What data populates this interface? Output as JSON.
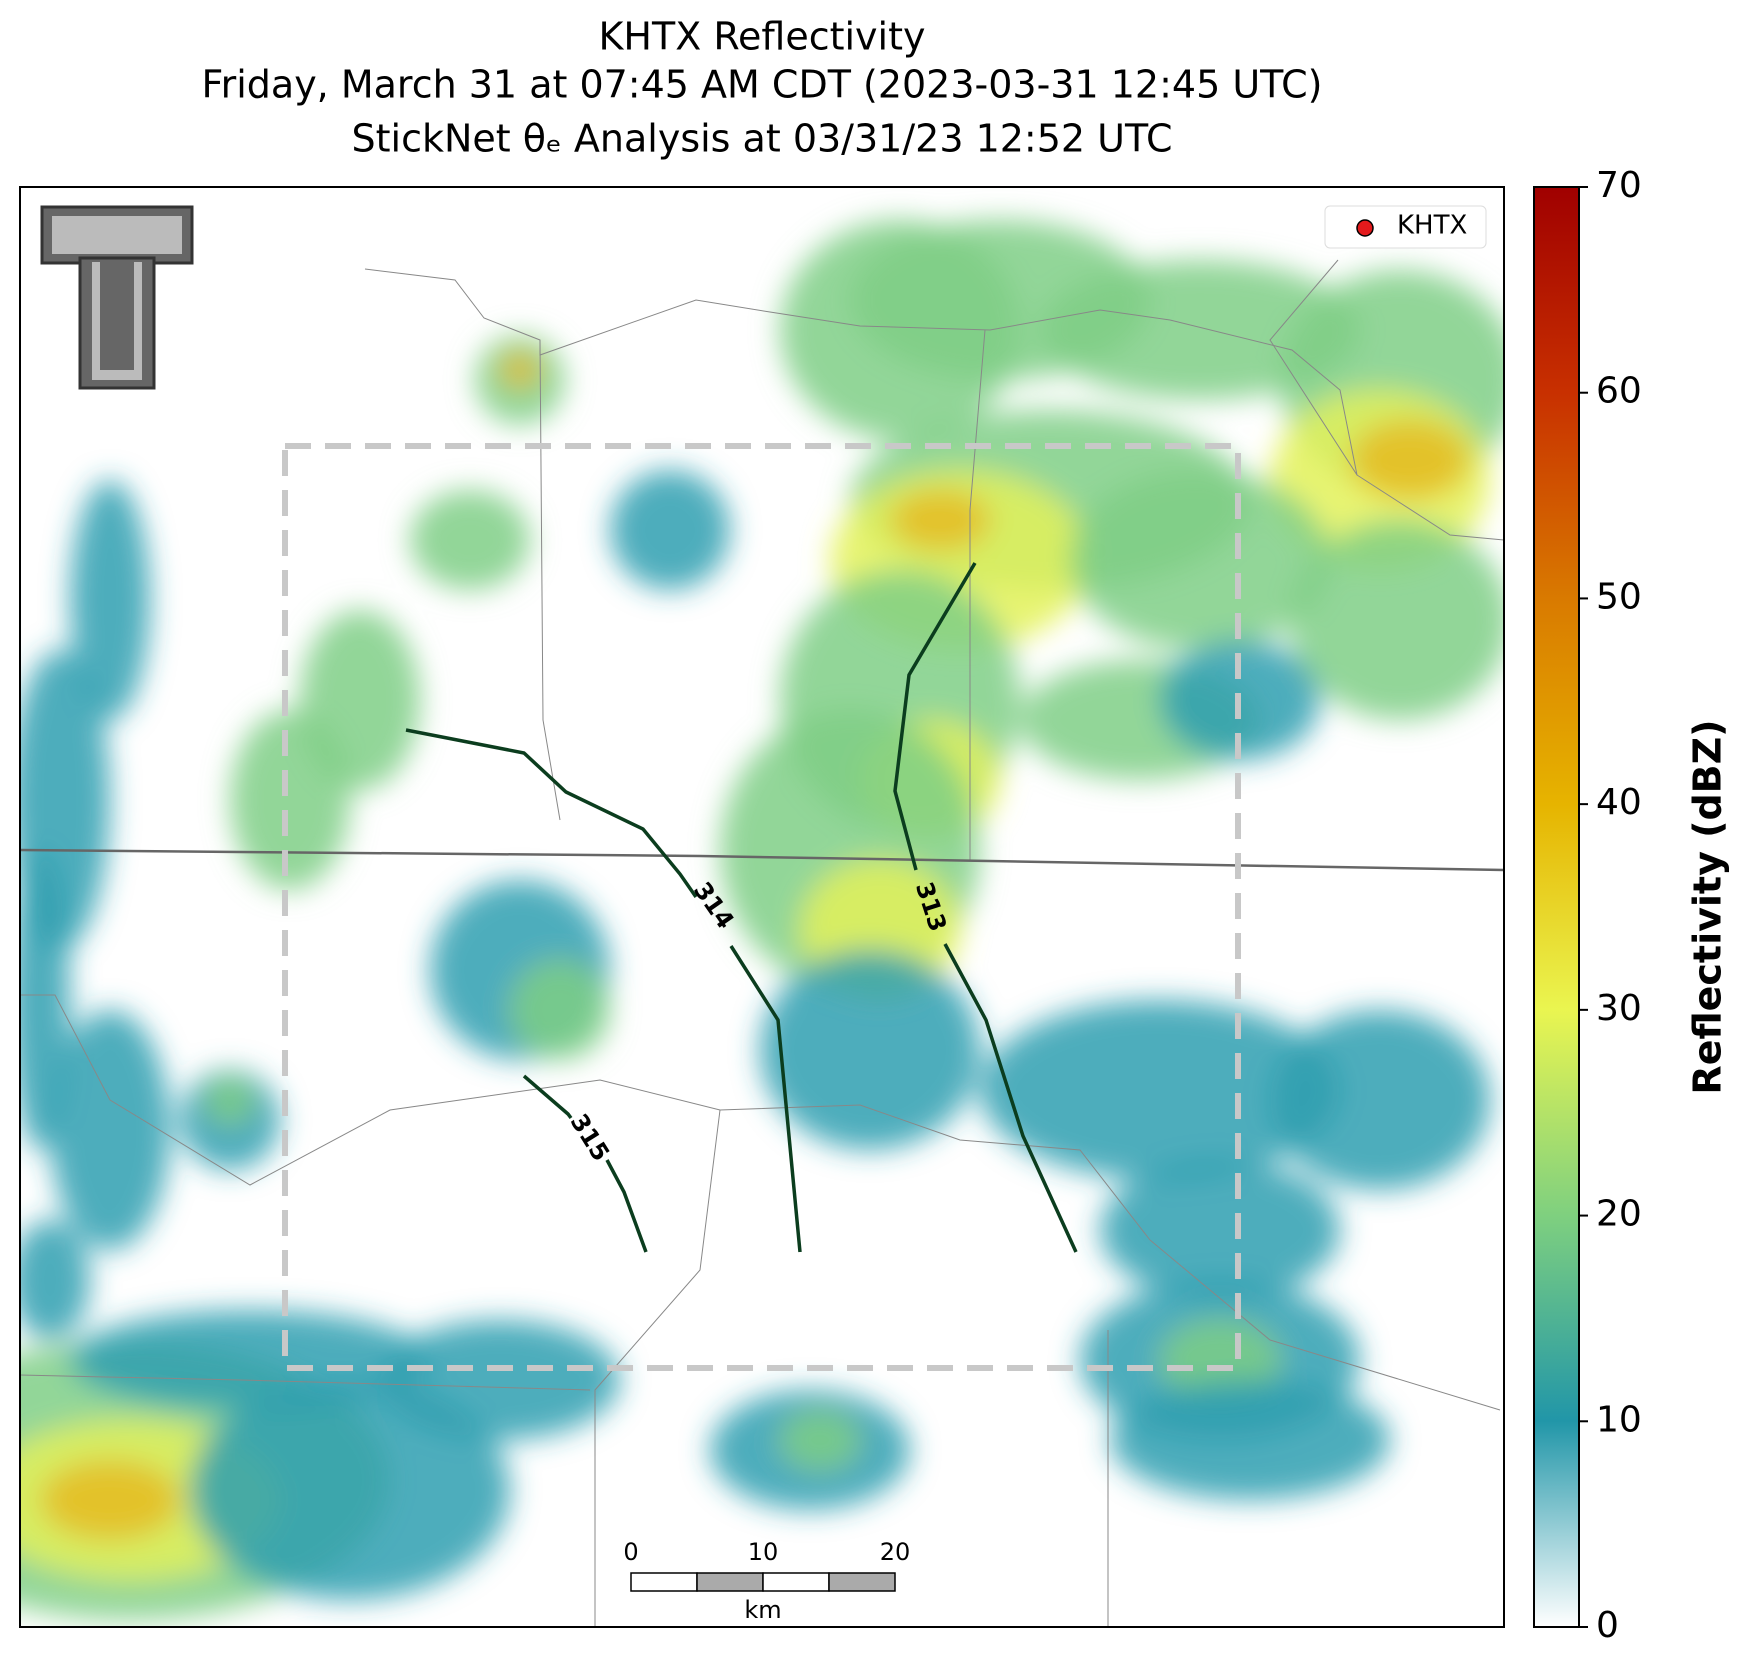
{
  "title": [
    "KHTX Reflectivity",
    "Friday, March 31 at 07:45 AM CDT (2023-03-31 12:45 UTC)",
    "StickNet θₑ Analysis at 03/31/23 12:52 UTC"
  ],
  "legend": {
    "label": "KHTX",
    "color": "#e31a1c"
  },
  "colorbar": {
    "label": "Reflectivity (dBZ)",
    "lim": [
      0,
      70
    ],
    "ticks": [
      0,
      10,
      20,
      30,
      40,
      50,
      60,
      70
    ]
  },
  "contours": [
    {
      "level": 314
    },
    {
      "level": 313
    },
    {
      "level": 315
    }
  ],
  "scale_bar": {
    "ticks": [
      0,
      10,
      20
    ],
    "unit": "km"
  }
}
